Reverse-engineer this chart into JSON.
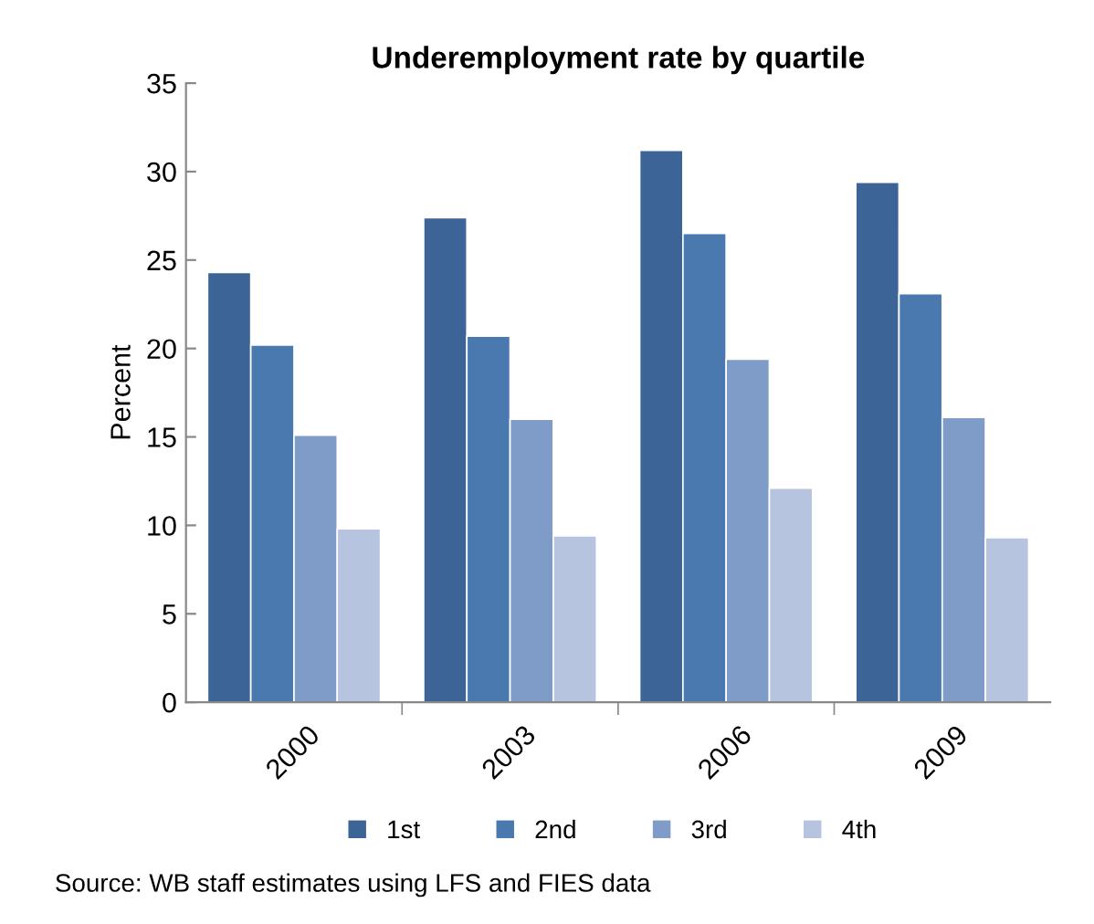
{
  "chart_data": {
    "type": "bar",
    "title": "Underemployment rate by quartile",
    "ylabel": "Percent",
    "categories": [
      "2000",
      "2003",
      "2006",
      "2009"
    ],
    "series": [
      {
        "name": "1st",
        "color": "#3c6496",
        "values": [
          24.3,
          27.4,
          31.2,
          29.4
        ]
      },
      {
        "name": "2nd",
        "color": "#4a79b0",
        "values": [
          20.2,
          20.7,
          26.5,
          23.1
        ]
      },
      {
        "name": "3rd",
        "color": "#7f9cc8",
        "values": [
          15.1,
          16.0,
          19.4,
          16.1
        ]
      },
      {
        "name": "4th",
        "color": "#b6c4df",
        "values": [
          9.8,
          9.4,
          12.1,
          9.3
        ]
      }
    ],
    "ylim": [
      0,
      35
    ],
    "yticks": [
      0,
      5,
      10,
      15,
      20,
      25,
      30,
      35
    ],
    "grid": false,
    "legend": "bottom",
    "annotations": [
      "Source: WB staff estimates using LFS and FIES data"
    ]
  }
}
